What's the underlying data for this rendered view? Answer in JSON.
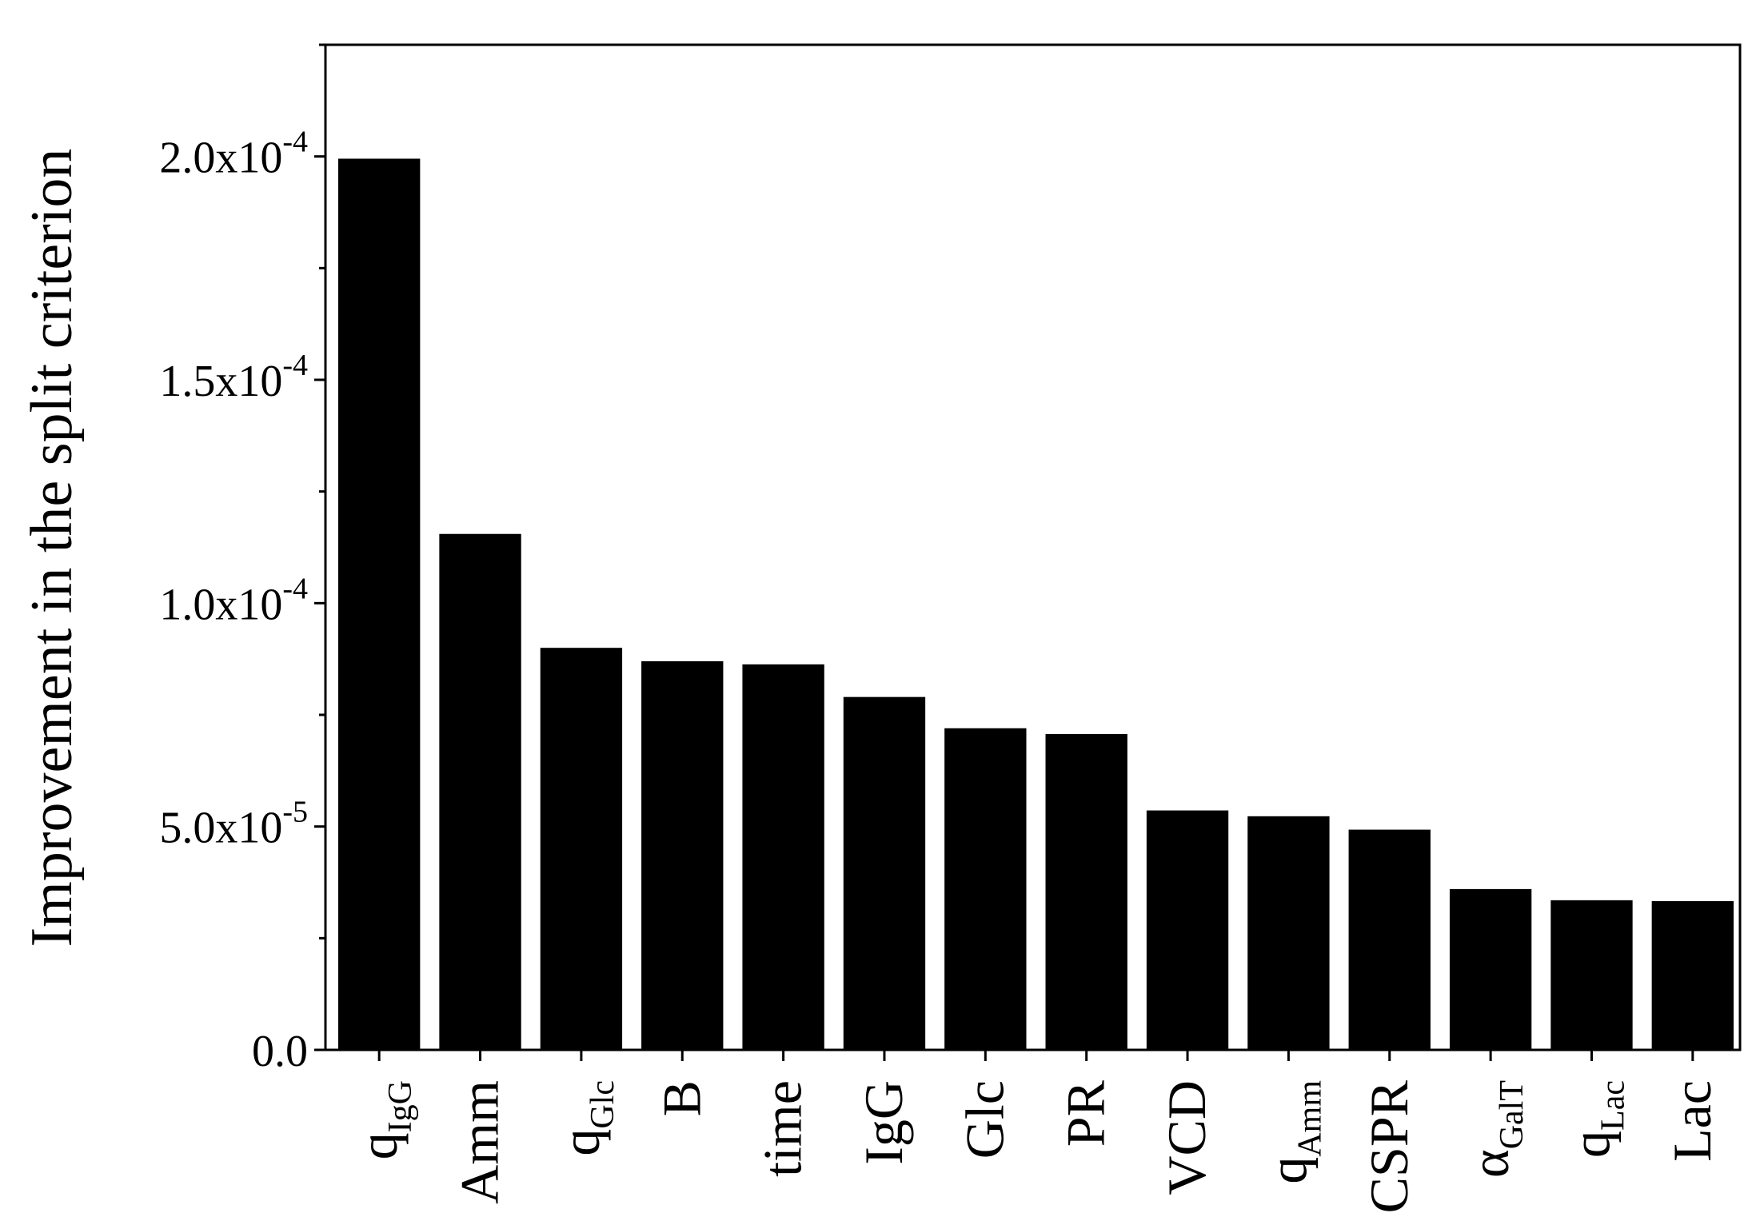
{
  "chart_data": {
    "type": "bar",
    "y_label": "Improvement in the split criterion",
    "categories": [
      {
        "text": "q",
        "sub": "IgG"
      },
      "Amm",
      {
        "text": "q",
        "sub": "Glc"
      },
      "B",
      "time",
      "IgG",
      "Glc",
      "PR",
      "VCD",
      {
        "text": "q",
        "sub": "Amm"
      },
      "CSPR",
      {
        "text": "α",
        "sub": "GalT"
      },
      {
        "text": "q",
        "sub": "Lac"
      },
      "Lac"
    ],
    "values": [
      0.0001995,
      0.0001155,
      9e-05,
      8.7e-05,
      8.63e-05,
      7.9e-05,
      7.2e-05,
      7.07e-05,
      5.36e-05,
      5.23e-05,
      4.93e-05,
      3.6e-05,
      3.35e-05,
      3.33e-05
    ],
    "color": "#000000",
    "ylim": [
      0,
      0.000225
    ],
    "yticks": [
      {
        "value": 0,
        "label": "0.0"
      },
      {
        "value": 5e-05,
        "label": "5.0x10",
        "sup": "-5"
      },
      {
        "value": 0.0001,
        "label": "1.0x10",
        "sup": "-4"
      },
      {
        "value": 0.00015,
        "label": "1.5x10",
        "sup": "-4"
      },
      {
        "value": 0.0002,
        "label": "2.0x10",
        "sup": "-4"
      }
    ],
    "yminorticks": [
      2.5e-05,
      7.5e-05,
      0.000125,
      0.000175,
      0.000225
    ]
  }
}
